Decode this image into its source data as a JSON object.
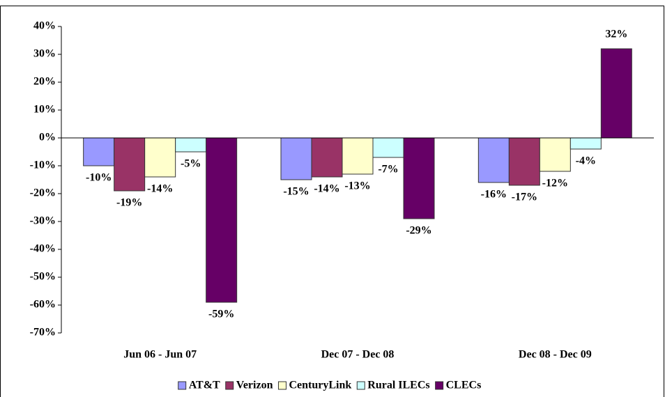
{
  "chart_data": {
    "type": "bar",
    "categories": [
      "Jun 06 - Jun 07",
      "Dec 07 - Dec 08",
      "Dec 08 - Dec 09"
    ],
    "series": [
      {
        "name": "AT&T",
        "color": "#9999ff",
        "values": [
          -10,
          -15,
          -16
        ],
        "value_labels": [
          "-10%",
          "-15%",
          "-16%"
        ]
      },
      {
        "name": "Verizon",
        "color": "#993366",
        "values": [
          -19,
          -14,
          -17
        ],
        "value_labels": [
          "-19%",
          "-14%",
          "-17%"
        ]
      },
      {
        "name": "CenturyLink",
        "color": "#ffffcc",
        "values": [
          -14,
          -13,
          -12
        ],
        "value_labels": [
          "-14%",
          "-13%",
          "-12%"
        ]
      },
      {
        "name": "Rural ILECs",
        "color": "#ccffff",
        "values": [
          -5,
          -7,
          -4
        ],
        "value_labels": [
          "-5%",
          "-7%",
          "-4%"
        ]
      },
      {
        "name": "CLECs",
        "color": "#660066",
        "values": [
          -59,
          -29,
          32
        ],
        "value_labels": [
          "-59%",
          "-29%",
          "32%"
        ]
      }
    ],
    "ylim": [
      -70,
      40
    ],
    "yticks": [
      {
        "value": -70,
        "label": "-70%"
      },
      {
        "value": -60,
        "label": "-60%"
      },
      {
        "value": -50,
        "label": "-50%"
      },
      {
        "value": -40,
        "label": "-40%"
      },
      {
        "value": -30,
        "label": "-30%"
      },
      {
        "value": -20,
        "label": "-20%"
      },
      {
        "value": -10,
        "label": "-10%"
      },
      {
        "value": 0,
        "label": "0%"
      },
      {
        "value": 10,
        "label": "10%"
      },
      {
        "value": 20,
        "label": "20%"
      },
      {
        "value": 30,
        "label": "30%"
      },
      {
        "value": 40,
        "label": "40%"
      }
    ],
    "grid": false,
    "legend": "bottom"
  }
}
